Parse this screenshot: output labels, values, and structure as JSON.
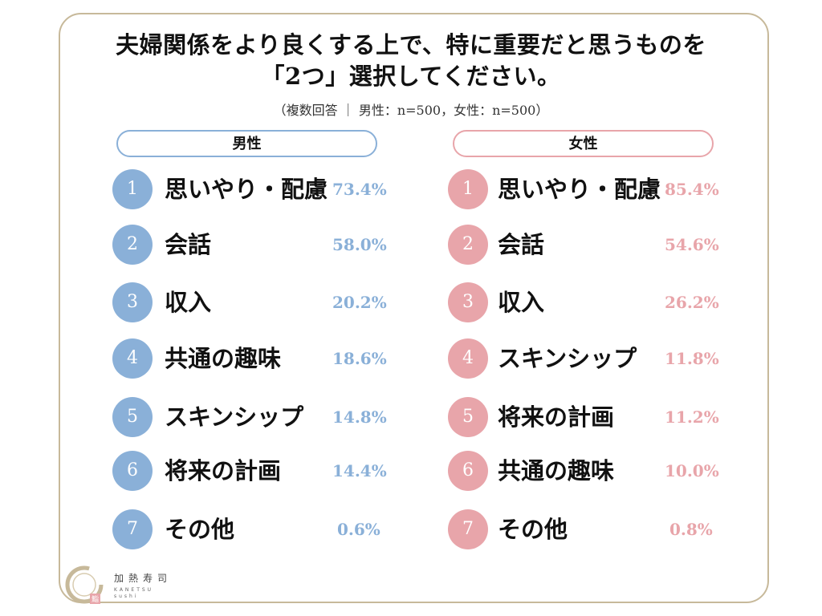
{
  "title_line1": "夫婦関係をより良くする上で、特に重要だと思うものを",
  "title_line2": "「2つ」選択してください。",
  "subtitle": "（複数回答 ｜ 男性：n=500，女性：n=500）",
  "colors": {
    "male": "#8ab0d8",
    "female": "#e8a5aa",
    "border": "#c7b99a"
  },
  "brand": {
    "jp": "加熱寿司",
    "en_line1": "KANETSU",
    "en_line2": "sushi",
    "seal": "鮨"
  },
  "chart_data": {
    "type": "table",
    "groups": [
      {
        "name": "男性",
        "rows": [
          {
            "rank": "1",
            "label": "思いやり・配慮",
            "value": 73.4,
            "display": "73.4%"
          },
          {
            "rank": "2",
            "label": "会話",
            "value": 58.0,
            "display": "58.0%"
          },
          {
            "rank": "3",
            "label": "収入",
            "value": 20.2,
            "display": "20.2%"
          },
          {
            "rank": "4",
            "label": "共通の趣味",
            "value": 18.6,
            "display": "18.6%"
          },
          {
            "rank": "5",
            "label": "スキンシップ",
            "value": 14.8,
            "display": "14.8%"
          },
          {
            "rank": "6",
            "label": "将来の計画",
            "value": 14.4,
            "display": "14.4%"
          },
          {
            "rank": "7",
            "label": "その他",
            "value": 0.6,
            "display": "0.6%"
          }
        ]
      },
      {
        "name": "女性",
        "rows": [
          {
            "rank": "1",
            "label": "思いやり・配慮",
            "value": 85.4,
            "display": "85.4%"
          },
          {
            "rank": "2",
            "label": "会話",
            "value": 54.6,
            "display": "54.6%"
          },
          {
            "rank": "3",
            "label": "収入",
            "value": 26.2,
            "display": "26.2%"
          },
          {
            "rank": "4",
            "label": "スキンシップ",
            "value": 11.8,
            "display": "11.8%"
          },
          {
            "rank": "5",
            "label": "将来の計画",
            "value": 11.2,
            "display": "11.2%"
          },
          {
            "rank": "6",
            "label": "共通の趣味",
            "value": 10.0,
            "display": "10.0%"
          },
          {
            "rank": "7",
            "label": "その他",
            "value": 0.8,
            "display": "0.8%"
          }
        ]
      }
    ]
  }
}
